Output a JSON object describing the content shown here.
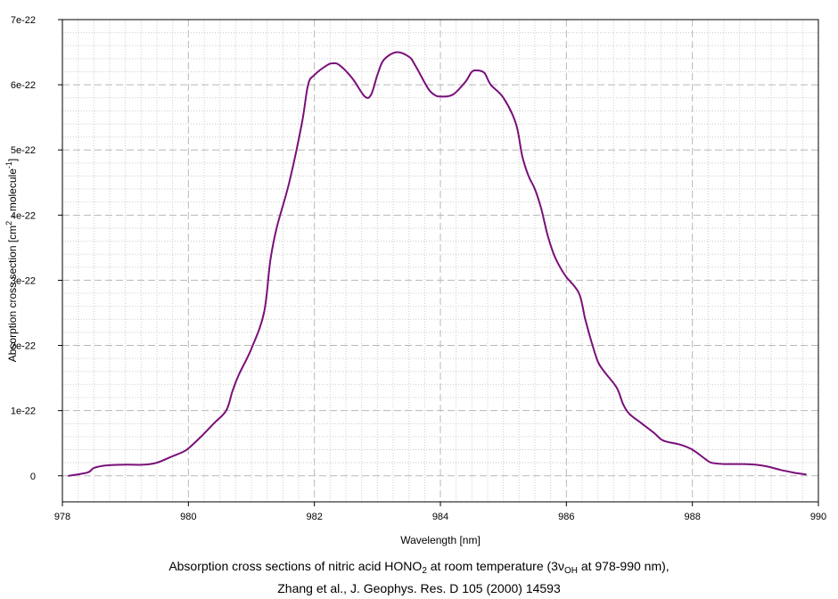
{
  "chart_data": {
    "type": "line",
    "xlabel": "Wavelength [nm]",
    "ylabel_parts": [
      "Absorption cross section [cm",
      "2",
      " · molecule",
      "-1",
      "]"
    ],
    "xlim": [
      978,
      990
    ],
    "ylim": [
      -4e-23,
      7e-22
    ],
    "x_ticks": [
      978,
      980,
      982,
      984,
      986,
      988,
      990
    ],
    "x_tick_labels": [
      "978",
      "980",
      "982",
      "984",
      "986",
      "988",
      "990"
    ],
    "y_ticks": [
      0,
      1e-22,
      2e-22,
      3e-22,
      4e-22,
      5e-22,
      6e-22,
      7e-22
    ],
    "y_tick_labels": [
      "0",
      "1e-22",
      "2e-22",
      "3e-22",
      "4e-22",
      "5e-22",
      "6e-22",
      "7e-22"
    ],
    "grid": true,
    "series": [
      {
        "color": "#7a0f7a",
        "x": [
          978.1,
          978.4,
          978.5,
          978.7,
          979.0,
          979.3,
          979.5,
          979.7,
          979.9,
          980.0,
          980.2,
          980.4,
          980.6,
          980.7,
          980.8,
          981.0,
          981.2,
          981.3,
          981.4,
          981.6,
          981.8,
          981.9,
          982.0,
          982.2,
          982.3,
          982.4,
          982.6,
          982.8,
          982.9,
          983.0,
          983.1,
          983.3,
          983.5,
          983.6,
          983.8,
          983.9,
          984.0,
          984.2,
          984.4,
          984.5,
          984.6,
          984.7,
          984.8,
          985.0,
          985.2,
          985.3,
          985.4,
          985.5,
          985.6,
          985.7,
          985.8,
          985.9,
          986.0,
          986.2,
          986.3,
          986.4,
          986.5,
          986.6,
          986.8,
          986.9,
          987.0,
          987.2,
          987.4,
          987.5,
          987.6,
          987.8,
          988.0,
          988.2,
          988.3,
          988.5,
          988.8,
          989.0,
          989.2,
          989.4,
          989.6,
          989.8
        ],
        "y": [
          0.0,
          5e-24,
          1.2e-23,
          1.6e-23,
          1.7e-23,
          1.7e-23,
          2e-23,
          2.8e-23,
          3.6e-23,
          4.2e-23,
          6e-23,
          8e-23,
          1e-22,
          1.3e-22,
          1.55e-22,
          1.95e-22,
          2.5e-22,
          3.3e-22,
          3.8e-22,
          4.5e-22,
          5.4e-22,
          6e-22,
          6.15e-22,
          6.3e-22,
          6.33e-22,
          6.3e-22,
          6.1e-22,
          5.82e-22,
          5.85e-22,
          6.15e-22,
          6.38e-22,
          6.5e-22,
          6.43e-22,
          6.3e-22,
          5.95e-22,
          5.85e-22,
          5.82e-22,
          5.85e-22,
          6.05e-22,
          6.2e-22,
          6.22e-22,
          6.18e-22,
          6e-22,
          5.8e-22,
          5.4e-22,
          4.9e-22,
          4.6e-22,
          4.4e-22,
          4.1e-22,
          3.7e-22,
          3.4e-22,
          3.2e-22,
          3.05e-22,
          2.8e-22,
          2.4e-22,
          2.05e-22,
          1.75e-22,
          1.6e-22,
          1.35e-22,
          1.1e-22,
          9.5e-23,
          8e-23,
          6.5e-23,
          5.6e-23,
          5.2e-23,
          4.8e-23,
          4e-23,
          2.6e-23,
          2e-23,
          1.8e-23,
          1.8e-23,
          1.7e-23,
          1.4e-23,
          9e-24,
          5e-24,
          2e-24
        ]
      }
    ]
  },
  "caption": {
    "line1_a": "Absorption cross sections of nitric acid HONO",
    "line1_sub": "2",
    "line1_b": " at room temperature (3",
    "line1_nu": "ν",
    "line1_sub2": "OH",
    "line1_c": " at 978-990 nm),",
    "line2": "Zhang et al., J. Geophys. Res. D 105 (2000) 14593"
  }
}
